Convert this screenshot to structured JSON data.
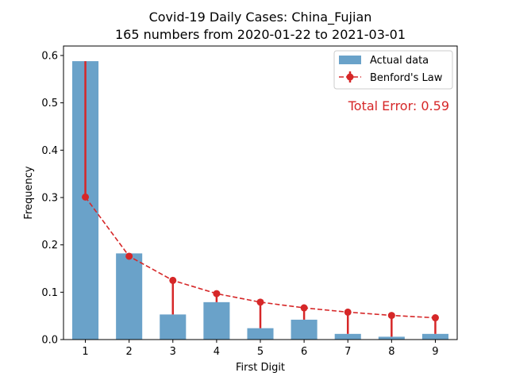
{
  "chart_data": {
    "type": "bar",
    "title": "Covid-19 Daily Cases: China_Fujian",
    "subtitle": "165 numbers from 2020-01-22 to 2021-03-01",
    "xlabel": "First Digit",
    "ylabel": "Frequency",
    "categories": [
      "1",
      "2",
      "3",
      "4",
      "5",
      "6",
      "7",
      "8",
      "9"
    ],
    "ylim": [
      0,
      0.62
    ],
    "yticks": [
      "0.0",
      "0.1",
      "0.2",
      "0.3",
      "0.4",
      "0.5",
      "0.6"
    ],
    "series": [
      {
        "name": "Actual data",
        "kind": "bar",
        "color": "#6aa2c9",
        "values": [
          0.588,
          0.182,
          0.053,
          0.079,
          0.024,
          0.042,
          0.012,
          0.006,
          0.012
        ]
      },
      {
        "name": "Benford's Law",
        "kind": "line-errorbar",
        "color": "#d62728",
        "values": [
          0.301,
          0.176,
          0.125,
          0.097,
          0.079,
          0.067,
          0.058,
          0.051,
          0.046
        ]
      }
    ],
    "annotation": "Total Error: 0.59",
    "annotation_color": "#d62728",
    "legend_position": "top-right",
    "grid": false
  }
}
